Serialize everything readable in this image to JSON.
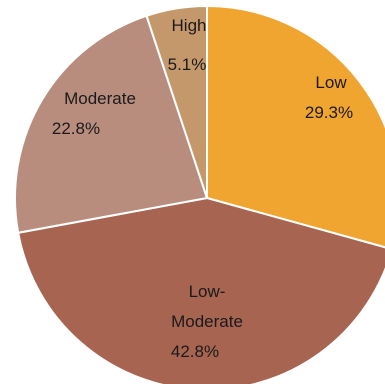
{
  "chart_data": {
    "type": "pie",
    "start_angle_deg": 0,
    "direction": "clockwise",
    "slices": [
      {
        "label": [
          "Low"
        ],
        "value_label": "29.3%",
        "value": 29.3,
        "color": "#F0A531"
      },
      {
        "label": [
          "Low-",
          "Moderate"
        ],
        "value_label": "42.8%",
        "value": 42.8,
        "color": "#A76451"
      },
      {
        "label": [
          "Moderate"
        ],
        "value_label": "22.8%",
        "value": 22.8,
        "color": "#B88D7E"
      },
      {
        "label": [
          "High"
        ],
        "value_label": "5.1%",
        "value": 5.1,
        "color": "#C5986C"
      }
    ]
  }
}
